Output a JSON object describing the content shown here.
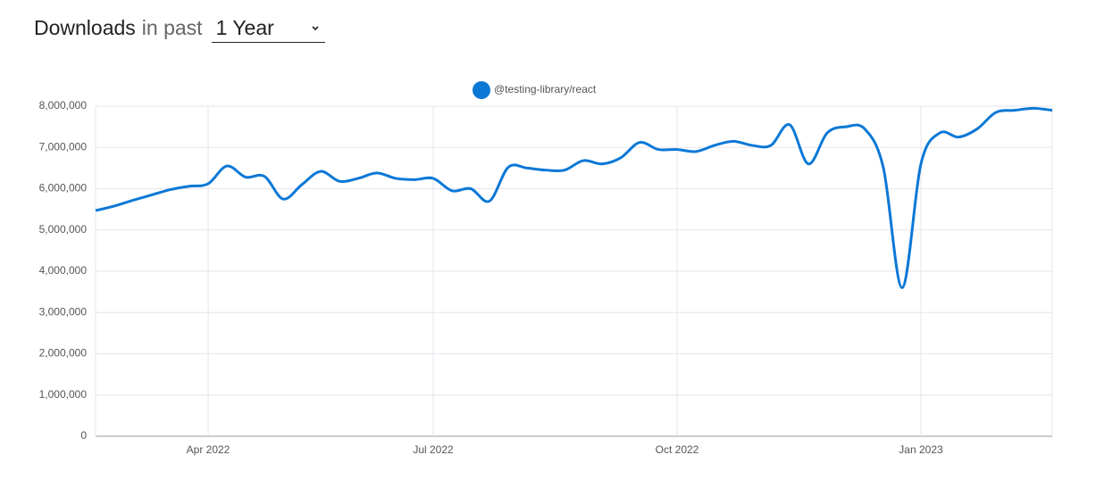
{
  "header": {
    "title": "Downloads",
    "subtitle": "in past",
    "period": "1 Year"
  },
  "chart_data": {
    "type": "line",
    "categories": [
      null,
      null,
      null,
      null,
      null,
      null,
      "Apr 2022",
      null,
      null,
      null,
      null,
      null,
      null,
      null,
      null,
      null,
      null,
      null,
      "Jul 2022",
      null,
      null,
      null,
      null,
      null,
      null,
      null,
      null,
      null,
      null,
      null,
      null,
      "Oct 2022",
      null,
      null,
      null,
      null,
      null,
      null,
      null,
      null,
      null,
      null,
      null,
      null,
      "Jan 2023",
      null,
      null,
      null,
      null,
      null,
      null,
      null
    ],
    "series": [
      {
        "name": "@testing-library/react",
        "color": "#0b78d6",
        "values": [
          5470000,
          5580000,
          5720000,
          5850000,
          5980000,
          6060000,
          6120000,
          6550000,
          6280000,
          6300000,
          5750000,
          6100000,
          6420000,
          6180000,
          6250000,
          6380000,
          6250000,
          6220000,
          6250000,
          5950000,
          6000000,
          5700000,
          6520000,
          6500000,
          6450000,
          6450000,
          6680000,
          6600000,
          6750000,
          7120000,
          6950000,
          6950000,
          6900000,
          7050000,
          7150000,
          7050000,
          7050000,
          7550000,
          6600000,
          7350000,
          7500000,
          7450000,
          6500000,
          3600000,
          6600000,
          7350000,
          7250000,
          7450000,
          7850000,
          7900000,
          7950000,
          7900000
        ]
      }
    ],
    "ylim": [
      0,
      8000000
    ],
    "yticks": [
      0,
      {
        "value": 1000000,
        "label": "1,000,000"
      },
      {
        "value": 2000000,
        "label": "2,000,000"
      },
      {
        "value": 3000000,
        "label": "3,000,000"
      },
      {
        "value": 4000000,
        "label": "4,000,000"
      },
      {
        "value": 5000000,
        "label": "5,000,000"
      },
      {
        "value": 6000000,
        "label": "6,000,000"
      },
      {
        "value": 7000000,
        "label": "7,000,000"
      },
      {
        "value": 8000000,
        "label": "8,000,000"
      }
    ],
    "grid": true,
    "legend": "top"
  }
}
